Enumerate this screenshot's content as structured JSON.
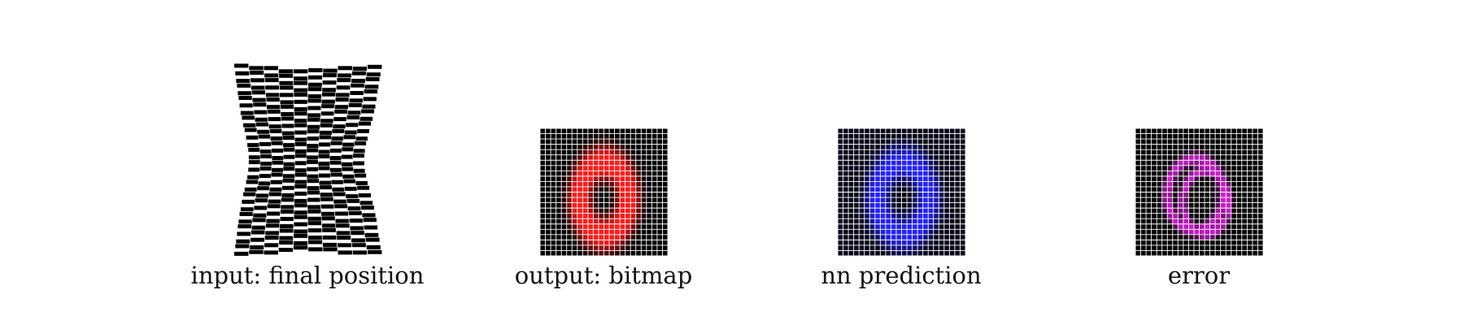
{
  "panels": [
    {
      "caption": "input: final position",
      "kind": "deformed-grid",
      "color": "#000000"
    },
    {
      "caption": "output: bitmap",
      "kind": "bitmap",
      "color": "#ff1a1a",
      "background": "#000000",
      "grid_color": "#ffffff"
    },
    {
      "caption": "nn prediction",
      "kind": "bitmap",
      "color": "#2222ff",
      "background": "#06061a",
      "grid_color": "#ffffff"
    },
    {
      "caption": "error",
      "kind": "error-map",
      "color": "#ee22ee",
      "background": "#000000",
      "grid_color": "#ffffff"
    }
  ]
}
